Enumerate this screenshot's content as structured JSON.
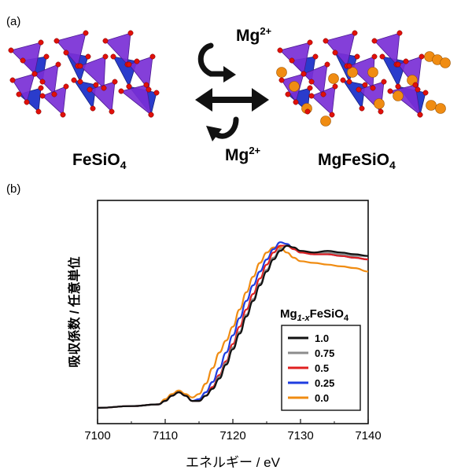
{
  "panel_a": {
    "label": "(a)",
    "left_structure": "FeSiO",
    "left_sub": "4",
    "right_structure": "MgFeSiO",
    "right_sub": "4",
    "top_ion": "Mg",
    "top_ion_sup": "2+",
    "bottom_ion": "Mg",
    "bottom_ion_sup": "2+",
    "colors": {
      "tetra_blue": "#2a3ccc",
      "tetra_purple": "#7a2fd6",
      "oxygen": "#e0100a",
      "magnesium": "#f08c12"
    }
  },
  "panel_b": {
    "label": "(b)",
    "legend_title_main": "Mg",
    "legend_title_sub": "1-x",
    "legend_title_rest": "FeSiO",
    "legend_title_sub2": "4"
  },
  "chart_data": {
    "type": "line",
    "xlabel": "エネルギー / eV",
    "ylabel": "吸収係数 / 任意単位",
    "xlim": [
      7100,
      7140
    ],
    "xticks": [
      "7100",
      "7110",
      "7120",
      "7130",
      "7140"
    ],
    "legend_placement": "lower-right",
    "series": [
      {
        "name": "1.0",
        "color": "#111111",
        "x": [
          7100,
          7105,
          7109,
          7110,
          7111,
          7112,
          7113,
          7114,
          7115,
          7116,
          7117,
          7118,
          7119,
          7120,
          7121,
          7122,
          7123,
          7124,
          7125,
          7126,
          7127,
          7128,
          7129,
          7130,
          7132,
          7134,
          7136,
          7138,
          7140
        ],
        "y": [
          0.03,
          0.04,
          0.05,
          0.07,
          0.1,
          0.12,
          0.1,
          0.07,
          0.07,
          0.1,
          0.14,
          0.2,
          0.28,
          0.37,
          0.46,
          0.56,
          0.65,
          0.74,
          0.82,
          0.89,
          0.94,
          0.97,
          0.96,
          0.94,
          0.93,
          0.94,
          0.93,
          0.92,
          0.91
        ]
      },
      {
        "name": "0.75",
        "color": "#8c8c8c",
        "x": [
          7100,
          7105,
          7109,
          7110,
          7111,
          7112,
          7113,
          7114,
          7115,
          7116,
          7117,
          7118,
          7119,
          7120,
          7121,
          7122,
          7123,
          7124,
          7125,
          7126,
          7127,
          7128,
          7129,
          7130,
          7132,
          7134,
          7136,
          7138,
          7140
        ],
        "y": [
          0.03,
          0.04,
          0.05,
          0.07,
          0.1,
          0.12,
          0.1,
          0.07,
          0.07,
          0.1,
          0.14,
          0.21,
          0.29,
          0.38,
          0.47,
          0.57,
          0.66,
          0.75,
          0.83,
          0.9,
          0.95,
          0.97,
          0.96,
          0.94,
          0.93,
          0.93,
          0.92,
          0.91,
          0.91
        ]
      },
      {
        "name": "0.5",
        "color": "#e02020",
        "x": [
          7100,
          7105,
          7109,
          7110,
          7111,
          7112,
          7113,
          7114,
          7115,
          7116,
          7117,
          7118,
          7119,
          7120,
          7121,
          7122,
          7123,
          7124,
          7125,
          7126,
          7127,
          7128,
          7129,
          7130,
          7132,
          7134,
          7136,
          7138,
          7140
        ],
        "y": [
          0.03,
          0.04,
          0.05,
          0.07,
          0.1,
          0.12,
          0.1,
          0.07,
          0.07,
          0.1,
          0.15,
          0.22,
          0.3,
          0.4,
          0.5,
          0.6,
          0.69,
          0.78,
          0.86,
          0.93,
          0.97,
          0.97,
          0.95,
          0.93,
          0.92,
          0.92,
          0.91,
          0.9,
          0.89
        ]
      },
      {
        "name": "0.25",
        "color": "#1f3de0",
        "x": [
          7100,
          7105,
          7109,
          7110,
          7111,
          7112,
          7113,
          7114,
          7115,
          7116,
          7117,
          7118,
          7119,
          7120,
          7121,
          7122,
          7123,
          7124,
          7125,
          7126,
          7127,
          7128,
          7129,
          7130,
          7132,
          7134,
          7136,
          7138,
          7140
        ],
        "y": [
          0.03,
          0.04,
          0.05,
          0.07,
          0.1,
          0.12,
          0.1,
          0.07,
          0.08,
          0.12,
          0.18,
          0.26,
          0.35,
          0.45,
          0.55,
          0.65,
          0.74,
          0.82,
          0.89,
          0.95,
          0.99,
          0.98,
          0.95,
          0.93,
          0.92,
          0.92,
          0.91,
          0.9,
          0.89
        ]
      },
      {
        "name": "0.0",
        "color": "#f08c12",
        "x": [
          7100,
          7105,
          7109,
          7110,
          7111,
          7112,
          7113,
          7114,
          7115,
          7116,
          7117,
          7118,
          7119,
          7120,
          7121,
          7122,
          7123,
          7124,
          7125,
          7126,
          7127,
          7128,
          7129,
          7130,
          7132,
          7134,
          7136,
          7138,
          7140
        ],
        "y": [
          0.03,
          0.04,
          0.05,
          0.08,
          0.11,
          0.13,
          0.11,
          0.09,
          0.11,
          0.17,
          0.26,
          0.35,
          0.42,
          0.5,
          0.6,
          0.7,
          0.79,
          0.87,
          0.93,
          0.96,
          0.96,
          0.93,
          0.9,
          0.88,
          0.87,
          0.86,
          0.85,
          0.84,
          0.82
        ]
      }
    ]
  }
}
